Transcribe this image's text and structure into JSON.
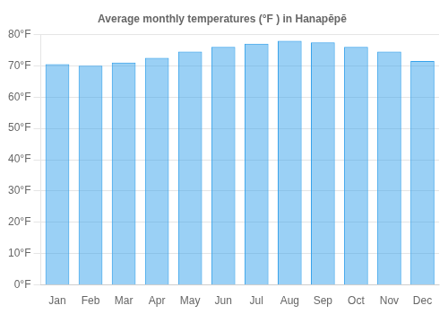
{
  "chart_data": {
    "type": "bar",
    "title": "Average monthly temperatures (°F ) in Hanapēpē",
    "categories": [
      "Jan",
      "Feb",
      "Mar",
      "Apr",
      "May",
      "Jun",
      "Jul",
      "Aug",
      "Sep",
      "Oct",
      "Nov",
      "Dec"
    ],
    "values": [
      70.5,
      70.0,
      71.0,
      72.5,
      74.5,
      76.0,
      77.0,
      78.0,
      77.5,
      76.0,
      74.5,
      71.5
    ],
    "ylim": [
      0,
      80
    ],
    "yticks": [
      {
        "value": 0,
        "label": "0°F"
      },
      {
        "value": 10,
        "label": "10°F"
      },
      {
        "value": 20,
        "label": "20°F"
      },
      {
        "value": 30,
        "label": "30°F"
      },
      {
        "value": 40,
        "label": "40°F"
      },
      {
        "value": 50,
        "label": "50°F"
      },
      {
        "value": 60,
        "label": "60°F"
      },
      {
        "value": 70,
        "label": "70°F"
      },
      {
        "value": 80,
        "label": "80°F"
      }
    ],
    "grid": true
  }
}
